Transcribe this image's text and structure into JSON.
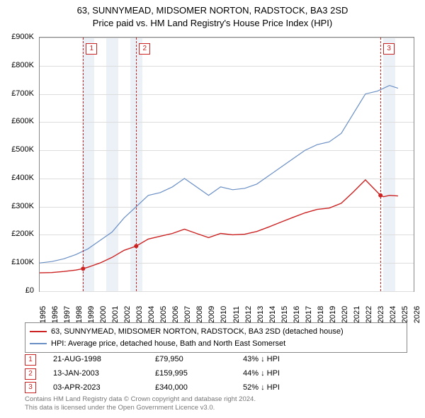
{
  "title_line1": "63, SUNNYMEAD, MIDSOMER NORTON, RADSTOCK, BA3 2SD",
  "title_line2": "Price paid vs. HM Land Registry's House Price Index (HPI)",
  "chart": {
    "type": "line",
    "x_min": 1995,
    "x_max": 2026,
    "y_min": 0,
    "y_max": 900000,
    "y_ticks": [
      0,
      100000,
      200000,
      300000,
      400000,
      500000,
      600000,
      700000,
      800000,
      900000
    ],
    "y_tick_labels": [
      "£0",
      "£100K",
      "£200K",
      "£300K",
      "£400K",
      "£500K",
      "£600K",
      "£700K",
      "£800K",
      "£900K"
    ],
    "x_ticks": [
      1995,
      1996,
      1997,
      1998,
      1999,
      2000,
      2001,
      2002,
      2003,
      2004,
      2005,
      2006,
      2007,
      2008,
      2009,
      2010,
      2011,
      2012,
      2013,
      2014,
      2015,
      2016,
      2017,
      2018,
      2019,
      2020,
      2021,
      2022,
      2023,
      2024,
      2025,
      2026
    ],
    "grid_color": "#dddddd",
    "shaded_color": "#ecf1f7",
    "shaded_ranges": [
      [
        1998.5,
        1999.5
      ],
      [
        2000.5,
        2001.5
      ],
      [
        2002.5,
        2003.5
      ],
      [
        2023.5,
        2024.5
      ]
    ],
    "series": [
      {
        "name": "hpi",
        "color": "#6a8fc5",
        "width": 1.2,
        "data": [
          [
            1995,
            100000
          ],
          [
            1996,
            105000
          ],
          [
            1997,
            115000
          ],
          [
            1998,
            130000
          ],
          [
            1999,
            150000
          ],
          [
            2000,
            180000
          ],
          [
            2001,
            210000
          ],
          [
            2002,
            260000
          ],
          [
            2003,
            300000
          ],
          [
            2004,
            340000
          ],
          [
            2005,
            350000
          ],
          [
            2006,
            370000
          ],
          [
            2007,
            400000
          ],
          [
            2008,
            370000
          ],
          [
            2009,
            340000
          ],
          [
            2010,
            370000
          ],
          [
            2011,
            360000
          ],
          [
            2012,
            365000
          ],
          [
            2013,
            380000
          ],
          [
            2014,
            410000
          ],
          [
            2015,
            440000
          ],
          [
            2016,
            470000
          ],
          [
            2017,
            500000
          ],
          [
            2018,
            520000
          ],
          [
            2019,
            530000
          ],
          [
            2020,
            560000
          ],
          [
            2021,
            630000
          ],
          [
            2022,
            700000
          ],
          [
            2023,
            710000
          ],
          [
            2024,
            730000
          ],
          [
            2024.7,
            720000
          ]
        ]
      },
      {
        "name": "property",
        "color": "#cc2222",
        "width": 1.4,
        "data": [
          [
            1995,
            65000
          ],
          [
            1996,
            66000
          ],
          [
            1997,
            70000
          ],
          [
            1998,
            75000
          ],
          [
            1998.6,
            79950
          ],
          [
            1999,
            85000
          ],
          [
            2000,
            100000
          ],
          [
            2001,
            120000
          ],
          [
            2002,
            145000
          ],
          [
            2003.0,
            159995
          ],
          [
            2004,
            185000
          ],
          [
            2005,
            195000
          ],
          [
            2006,
            205000
          ],
          [
            2007,
            220000
          ],
          [
            2008,
            205000
          ],
          [
            2009,
            190000
          ],
          [
            2010,
            205000
          ],
          [
            2011,
            200000
          ],
          [
            2012,
            202000
          ],
          [
            2013,
            212000
          ],
          [
            2014,
            228000
          ],
          [
            2015,
            245000
          ],
          [
            2016,
            262000
          ],
          [
            2017,
            278000
          ],
          [
            2018,
            290000
          ],
          [
            2019,
            295000
          ],
          [
            2020,
            312000
          ],
          [
            2021,
            352000
          ],
          [
            2022,
            395000
          ],
          [
            2023.25,
            340000
          ],
          [
            2023.5,
            335000
          ],
          [
            2024,
            340000
          ],
          [
            2024.7,
            338000
          ]
        ],
        "sale_points": [
          {
            "x": 1998.6,
            "y": 79950
          },
          {
            "x": 2003.0,
            "y": 159995
          },
          {
            "x": 2023.25,
            "y": 340000
          }
        ]
      }
    ],
    "event_lines": [
      {
        "x": 1998.6,
        "label": "1"
      },
      {
        "x": 2003.0,
        "label": "2"
      },
      {
        "x": 2023.25,
        "label": "3"
      }
    ]
  },
  "legend": [
    {
      "color": "#cc2222",
      "label": "63, SUNNYMEAD, MIDSOMER NORTON, RADSTOCK, BA3 2SD (detached house)"
    },
    {
      "color": "#6a8fc5",
      "label": "HPI: Average price, detached house, Bath and North East Somerset"
    }
  ],
  "sales": [
    {
      "n": "1",
      "date": "21-AUG-1998",
      "price": "£79,950",
      "diff": "43% ↓ HPI"
    },
    {
      "n": "2",
      "date": "13-JAN-2003",
      "price": "£159,995",
      "diff": "44% ↓ HPI"
    },
    {
      "n": "3",
      "date": "03-APR-2023",
      "price": "£340,000",
      "diff": "52% ↓ HPI"
    }
  ],
  "footer_line1": "Contains HM Land Registry data © Crown copyright and database right 2024.",
  "footer_line2": "This data is licensed under the Open Government Licence v3.0."
}
